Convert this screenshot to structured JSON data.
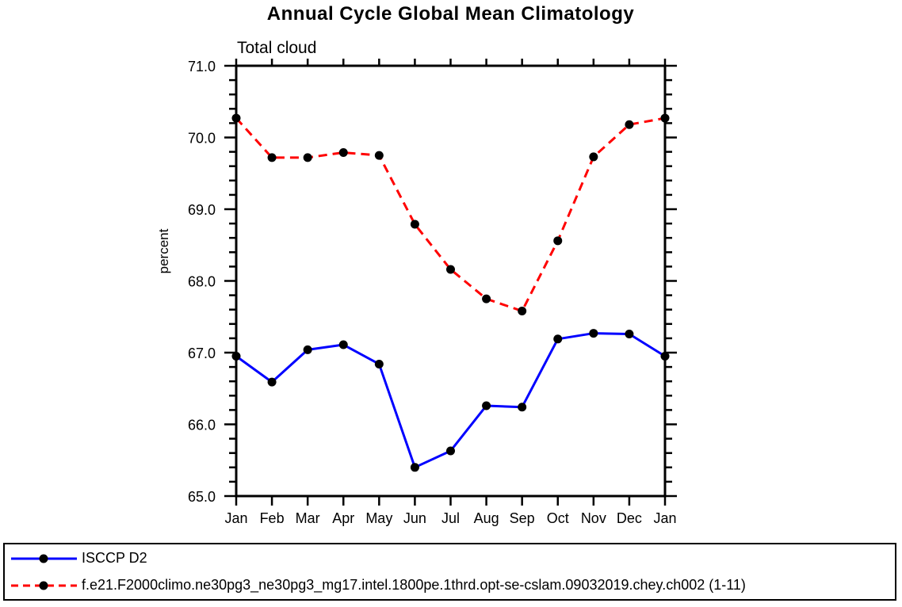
{
  "header": {
    "title": "Annual Cycle Global Mean Climatology",
    "subtitle": "Total cloud"
  },
  "chart_data": {
    "type": "line",
    "title": "Annual Cycle Global Mean Climatology",
    "subtitle": "Total cloud",
    "ylabel": "percent",
    "xlabel": "",
    "categories": [
      "Jan",
      "Feb",
      "Mar",
      "Apr",
      "May",
      "Jun",
      "Jul",
      "Aug",
      "Sep",
      "Oct",
      "Nov",
      "Dec",
      "Jan"
    ],
    "ylim": [
      65.0,
      71.0
    ],
    "ytick_interval_major": 1.0,
    "ytick_interval_minor": 0.2,
    "ytick_labels": [
      "71.0",
      "70.0",
      "69.0",
      "68.0",
      "67.0",
      "66.0",
      "65.0"
    ],
    "grid": false,
    "legend_position": "bottom-box",
    "axis_color": "#000000",
    "marker": {
      "shape": "filled-circle",
      "color": "#000000",
      "radius_px": 5.5
    },
    "series": [
      {
        "name": "ISCCP D2",
        "color": "#0000ff",
        "line_style": "solid",
        "values": [
          66.95,
          66.59,
          67.04,
          67.11,
          66.84,
          65.4,
          65.63,
          66.26,
          66.24,
          67.19,
          67.27,
          67.26,
          66.95
        ]
      },
      {
        "name": "f.e21.F2000climo.ne30pg3_ne30pg3_mg17.intel.1800pe.1thrd.opt-se-cslam.09032019.chey.ch002 (1-11)",
        "color": "#ff0000",
        "line_style": "dashed",
        "values": [
          70.27,
          69.72,
          69.72,
          69.79,
          69.75,
          68.79,
          68.16,
          67.75,
          67.58,
          68.56,
          69.73,
          70.18,
          70.27
        ]
      }
    ]
  }
}
